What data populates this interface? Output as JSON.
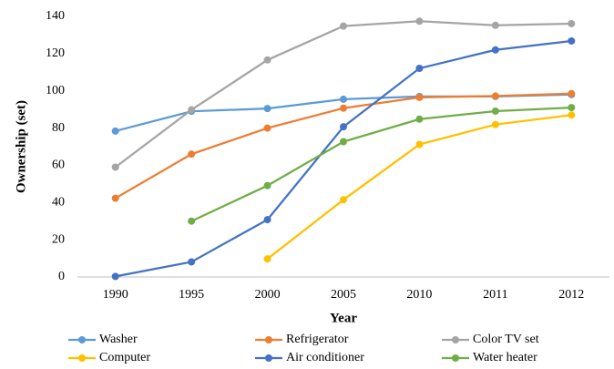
{
  "chart_data": {
    "type": "line",
    "x_label": "Year",
    "y_label": "Ownership (set)",
    "categories": [
      "1990",
      "1995",
      "2000",
      "2005",
      "2010",
      "2011",
      "2012"
    ],
    "series": [
      {
        "name": "Washer",
        "color": "#5b9bd5",
        "values": [
          78.4,
          89,
          90.5,
          95.5,
          97,
          97,
          98
        ]
      },
      {
        "name": "Refrigerator",
        "color": "#ed7d31",
        "values": [
          42.3,
          66,
          80,
          90.7,
          96.5,
          97.2,
          98.5
        ]
      },
      {
        "name": "Color TV set",
        "color": "#a5a5a5",
        "values": [
          59,
          89.8,
          116.6,
          134.8,
          137.4,
          135.2,
          136.1
        ]
      },
      {
        "name": "Computer",
        "color": "#ffc000",
        "values": [
          null,
          null,
          9.7,
          41.5,
          71.2,
          81.9,
          87
        ]
      },
      {
        "name": "Air conditioner",
        "color": "#4472c4",
        "values": [
          0.3,
          8.1,
          30.8,
          80.7,
          112.1,
          122,
          126.8
        ]
      },
      {
        "name": "Water heater",
        "color": "#70ad47",
        "values": [
          null,
          30,
          49.1,
          72.7,
          84.8,
          89.1,
          91
        ]
      }
    ],
    "ylim": [
      0,
      140
    ],
    "yticks": [
      0,
      20,
      40,
      60,
      80,
      100,
      120,
      140
    ],
    "grid": false,
    "legend": "bottom"
  }
}
